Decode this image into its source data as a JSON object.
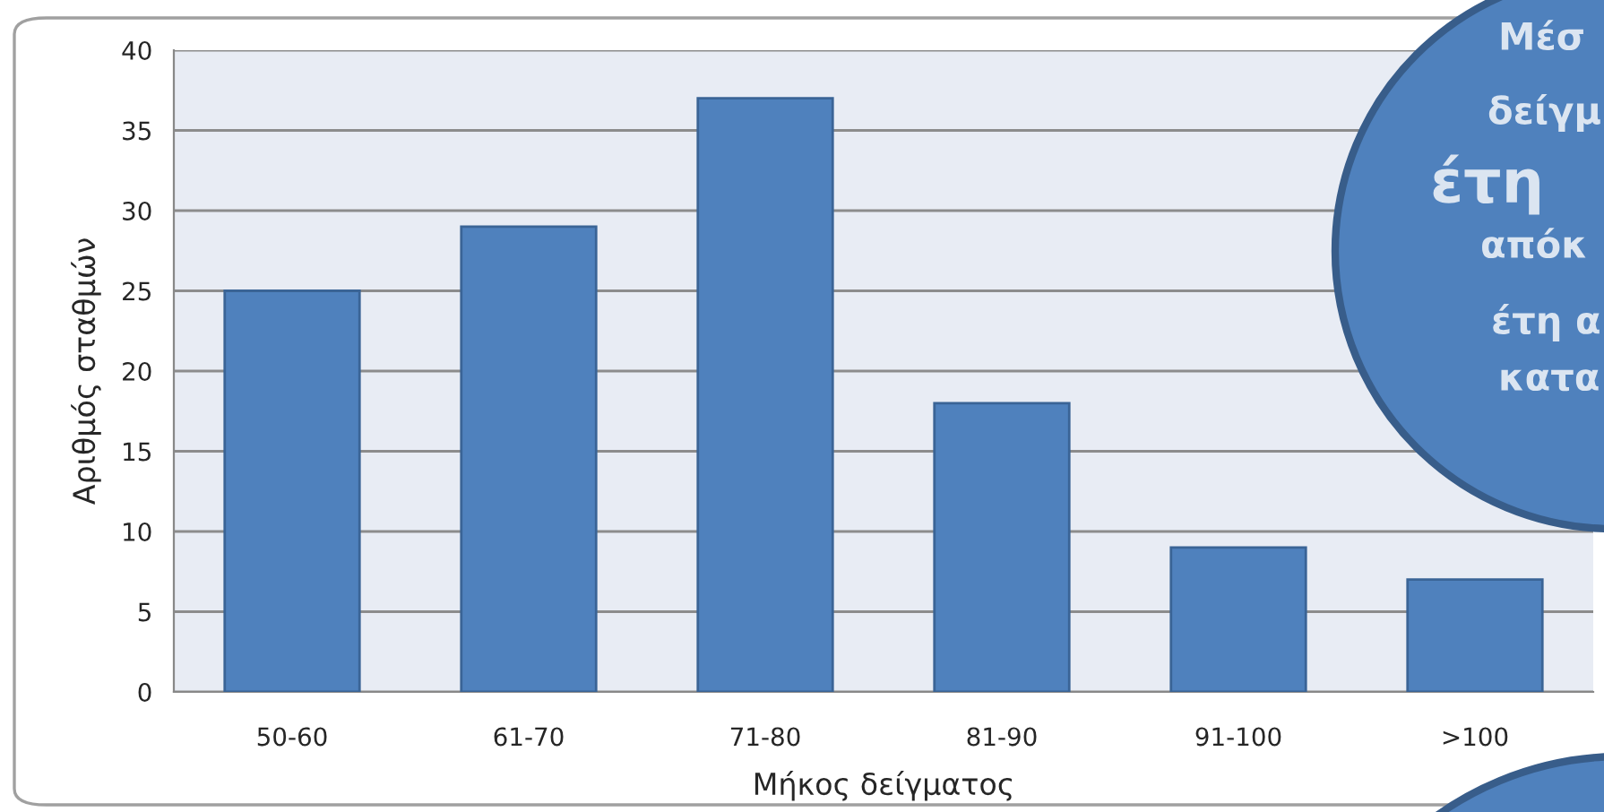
{
  "chart_data": {
    "type": "bar",
    "xlabel": "Μήκος δείγματος",
    "ylabel": "Αριθμός σταθμών",
    "categories": [
      "50-60",
      "61-70",
      "71-80",
      "81-90",
      "91-100",
      ">100"
    ],
    "values": [
      25,
      29,
      37,
      18,
      9,
      7
    ],
    "color": "#4f81bd",
    "ylim": [
      0,
      40
    ],
    "yticks": [
      0,
      5,
      10,
      15,
      20,
      25,
      30,
      35,
      40
    ],
    "grid": "y",
    "annotations": [
      "Μέσ",
      "δείγμ",
      "έτη",
      "απόκ",
      "έτη α",
      "κατα"
    ]
  }
}
